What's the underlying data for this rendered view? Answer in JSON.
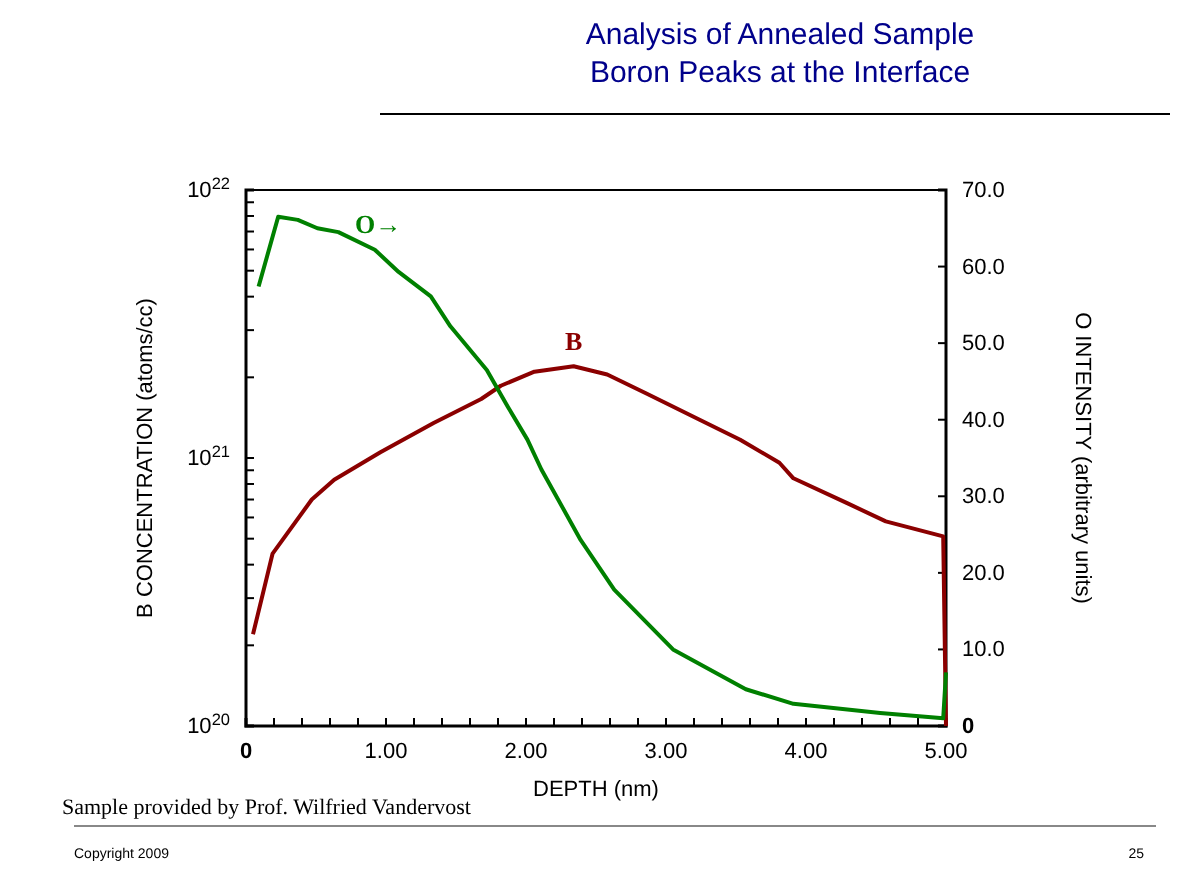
{
  "chart_data": {
    "type": "line",
    "title": "Analysis of Annealed Sample",
    "subtitle": "Boron Peaks at the Interface",
    "xlabel": "DEPTH (nm)",
    "ylabel": "B CONCENTRATION (atoms/cc)",
    "y2label": "O INTENSITY (arbitrary units)",
    "annotations": [
      "Sample provided by Prof. Wilfried Vandervost",
      "Copyright 2009",
      "25"
    ],
    "log": "y",
    "grid": false,
    "legend": false,
    "marker": "none",
    "line_style": "solid",
    "xlim": [
      0,
      5
    ],
    "xticks": [
      {
        "value": 0,
        "label": "0"
      },
      {
        "value": 0.2,
        "label": null
      },
      {
        "value": 0.4,
        "label": null
      },
      {
        "value": 0.6,
        "label": null
      },
      {
        "value": 0.8,
        "label": null
      },
      {
        "value": 1,
        "label": "1.00"
      },
      {
        "value": 1.2,
        "label": null
      },
      {
        "value": 1.4,
        "label": null
      },
      {
        "value": 1.6,
        "label": null
      },
      {
        "value": 1.8,
        "label": null
      },
      {
        "value": 2,
        "label": "2.00"
      },
      {
        "value": 2.2,
        "label": null
      },
      {
        "value": 2.4,
        "label": null
      },
      {
        "value": 2.6,
        "label": null
      },
      {
        "value": 2.8,
        "label": null
      },
      {
        "value": 3,
        "label": "3.00"
      },
      {
        "value": 3.2,
        "label": null
      },
      {
        "value": 3.4,
        "label": null
      },
      {
        "value": 3.6,
        "label": null
      },
      {
        "value": 3.8,
        "label": null
      },
      {
        "value": 4,
        "label": "4.00"
      },
      {
        "value": 4.2,
        "label": null
      },
      {
        "value": 4.4,
        "label": null
      },
      {
        "value": 4.6,
        "label": null
      },
      {
        "value": 4.8,
        "label": null
      },
      {
        "value": 5,
        "label": "5.00"
      }
    ],
    "ylim": [
      1e+20,
      1e+22
    ],
    "yticks": [
      {
        "value": 1e+20,
        "label": "10$^{20}$"
      },
      {
        "value": 2e+20,
        "label": null
      },
      {
        "value": 3e+20,
        "label": null
      },
      {
        "value": 4e+20,
        "label": null
      },
      {
        "value": 5e+20,
        "label": null
      },
      {
        "value": 6e+20,
        "label": null
      },
      {
        "value": 7e+20,
        "label": null
      },
      {
        "value": 8e+20,
        "label": null
      },
      {
        "value": 9e+20,
        "label": null
      },
      {
        "value": 1e+21,
        "label": "10$^{21}$"
      },
      {
        "value": 2e+21,
        "label": null
      },
      {
        "value": 3e+21,
        "label": null
      },
      {
        "value": 4e+21,
        "label": null
      },
      {
        "value": 5e+21,
        "label": null
      },
      {
        "value": 6e+21,
        "label": null
      },
      {
        "value": 7e+21,
        "label": null
      },
      {
        "value": 8e+21,
        "label": null
      },
      {
        "value": 9e+21,
        "label": null
      },
      {
        "value": 1e+22,
        "label": "10$^{22}$"
      }
    ],
    "y2lim": [
      0,
      70
    ],
    "y2ticks": [
      {
        "value": 0,
        "label": "0"
      },
      {
        "value": 10,
        "label": "10.0"
      },
      {
        "value": 20,
        "label": "20.0"
      },
      {
        "value": 30,
        "label": "30.0"
      },
      {
        "value": 40,
        "label": "40.0"
      },
      {
        "value": 50,
        "label": "50.0"
      },
      {
        "value": 60,
        "label": "60.0"
      },
      {
        "value": 70,
        "label": "70.0"
      }
    ],
    "series": [
      {
        "name": "B",
        "color": "#8b0000",
        "x": [
          0.05,
          0.19,
          0.47,
          0.63,
          0.96,
          1.34,
          1.68,
          1.82,
          2.06,
          2.34,
          2.58,
          2.86,
          3.24,
          3.53,
          3.81,
          3.91,
          4.29,
          4.57,
          4.98,
          5.0
        ],
        "values": [
          2.2e+20,
          4.4e+20,
          7e+20,
          8.3e+20,
          1.05e+21,
          1.35e+21,
          1.66e+21,
          1.86e+21,
          2.1e+21,
          2.2e+21,
          2.05e+21,
          1.74e+21,
          1.39e+21,
          1.17e+21,
          9.6e+20,
          8.4e+20,
          6.8e+20,
          5.8e+20,
          5.1e+20,
          1e+20
        ]
      },
      {
        "name": "O→",
        "color": "#008000",
        "axis": "y2",
        "x": [
          0.09,
          0.23,
          0.37,
          0.51,
          0.66,
          0.92,
          1.09,
          1.32,
          1.46,
          1.72,
          1.87,
          2.01,
          2.11,
          2.39,
          2.63,
          3.05,
          3.57,
          3.91,
          4.53,
          4.98,
          5.0
        ],
        "values": [
          57.4,
          66.5,
          66.1,
          65.0,
          64.5,
          62.2,
          59.3,
          56.1,
          52.2,
          46.5,
          41.7,
          37.4,
          33.5,
          24.3,
          17.8,
          10.0,
          4.8,
          2.9,
          1.7,
          1.0,
          7.0
        ]
      }
    ]
  }
}
